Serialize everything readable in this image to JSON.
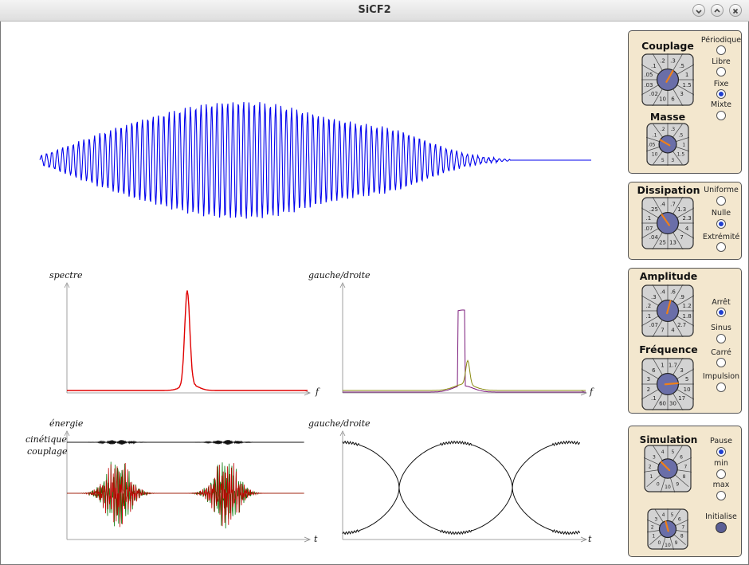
{
  "window": {
    "title": "SiCF2"
  },
  "graphs": {
    "spectre": {
      "ylabel": "spectre",
      "xlabel": "f"
    },
    "gauche_droite_top": {
      "ylabel": "gauche/droite",
      "xlabel": "f"
    },
    "energie": {
      "ylabel": "énergie",
      "curve1": "cinétique",
      "curve2": "couplage",
      "xlabel": "t"
    },
    "gauche_droite_bottom": {
      "ylabel": "gauche/droite",
      "xlabel": "t"
    }
  },
  "panels": {
    "couplage": {
      "title": "Couplage",
      "knob_labels": [
        ".3",
        ".5",
        "1",
        "1.5",
        "3",
        "6",
        "10",
        ".02",
        ".03",
        ".05",
        ".1",
        ".2"
      ],
      "mass_title": "Masse",
      "mass_labels": [
        ".3",
        ".5",
        "1",
        "1.5",
        "3",
        "5",
        "10",
        ".05",
        ".1",
        ".2"
      ],
      "options": [
        {
          "label": "Périodique",
          "selected": false
        },
        {
          "label": "Libre",
          "selected": false
        },
        {
          "label": "Fixe",
          "selected": true
        },
        {
          "label": "Mixte",
          "selected": false
        }
      ]
    },
    "dissipation": {
      "title": "Dissipation",
      "knob_labels": [
        ".7",
        "1.3",
        "2.3",
        "4",
        "7",
        "13",
        "25",
        ".04",
        ".07",
        ".1",
        ".25",
        ".4"
      ],
      "options": [
        {
          "label": "Uniforme",
          "selected": false
        },
        {
          "label": "Nulle",
          "selected": true
        },
        {
          "label": "Extrémité",
          "selected": false
        }
      ]
    },
    "amplitude": {
      "title": "Amplitude",
      "knob_labels": [
        ".6",
        ".9",
        "1.2",
        "1.8",
        "2.7",
        "4",
        "7",
        ".07",
        ".1",
        ".2",
        ".3",
        ".4"
      ],
      "freq_title": "Fréquence",
      "freq_labels": [
        "1.7",
        "3",
        "5",
        "10",
        "17",
        "30",
        "60",
        ".1",
        "2",
        "3",
        "6",
        "1"
      ],
      "options": [
        {
          "label": "Arrêt",
          "selected": true
        },
        {
          "label": "Sinus",
          "selected": false
        },
        {
          "label": "Carré",
          "selected": false
        },
        {
          "label": "Impulsion",
          "selected": false
        }
      ]
    },
    "simulation": {
      "title": "Simulation",
      "knob_labels": [
        "5",
        "6",
        "7",
        "8",
        "9",
        "10",
        "0",
        "1",
        "2",
        "3",
        "4"
      ],
      "knob2_labels": [
        "5",
        "6",
        "7",
        "8",
        "9",
        "10",
        "0",
        "1",
        "2",
        "3",
        "4"
      ],
      "options": [
        {
          "label": "Pause",
          "selected": true
        },
        {
          "label": "min",
          "selected": false
        },
        {
          "label": "max",
          "selected": false
        }
      ],
      "init_label": "Initialise"
    }
  },
  "colors": {
    "wave": "#0000ee",
    "spectrum": "#e00000",
    "knob_face": "#6a6ea8",
    "needle": "#f08018",
    "panel": "#f3e7ce",
    "selected": "#1f3fd0"
  }
}
